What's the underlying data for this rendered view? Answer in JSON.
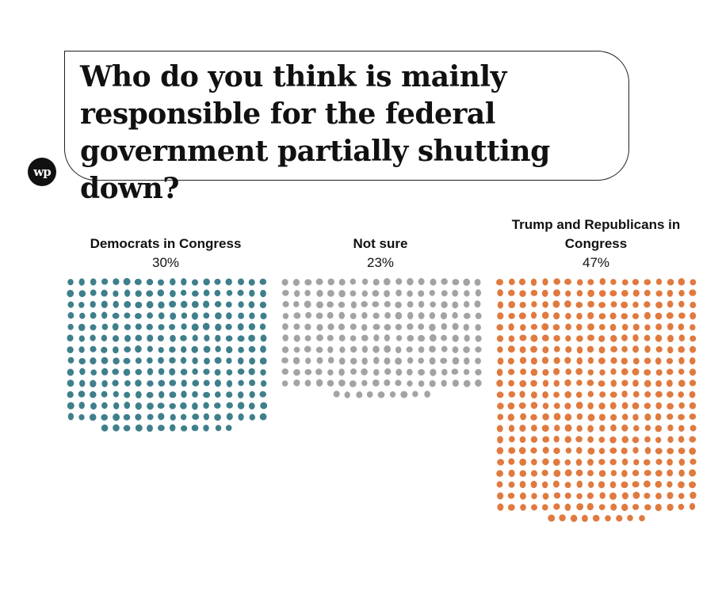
{
  "question": "Who do you think is mainly responsible for the federal government partially shutting down?",
  "logo_text": "wp",
  "chart_data": {
    "type": "waffle",
    "title": "Who do you think is mainly responsible for the federal government partially shutting down?",
    "unit_note": "each dot = one respondent share unit",
    "categories": [
      "Democrats in Congress",
      "Not sure",
      "Trump and Republicans in Congress"
    ],
    "values": [
      30,
      23,
      47
    ],
    "labels": [
      "30%",
      "23%",
      "47%"
    ],
    "dot_counts": [
      246,
      189,
      387
    ],
    "colors": [
      "#3f7f8c",
      "#a3a3a3",
      "#e07a3f"
    ]
  },
  "groups": [
    {
      "label": "Democrats in Congress",
      "pct": "30%"
    },
    {
      "label": "Not sure",
      "pct": "23%"
    },
    {
      "label": "Trump and Republicans in Congress",
      "pct": "47%"
    }
  ]
}
